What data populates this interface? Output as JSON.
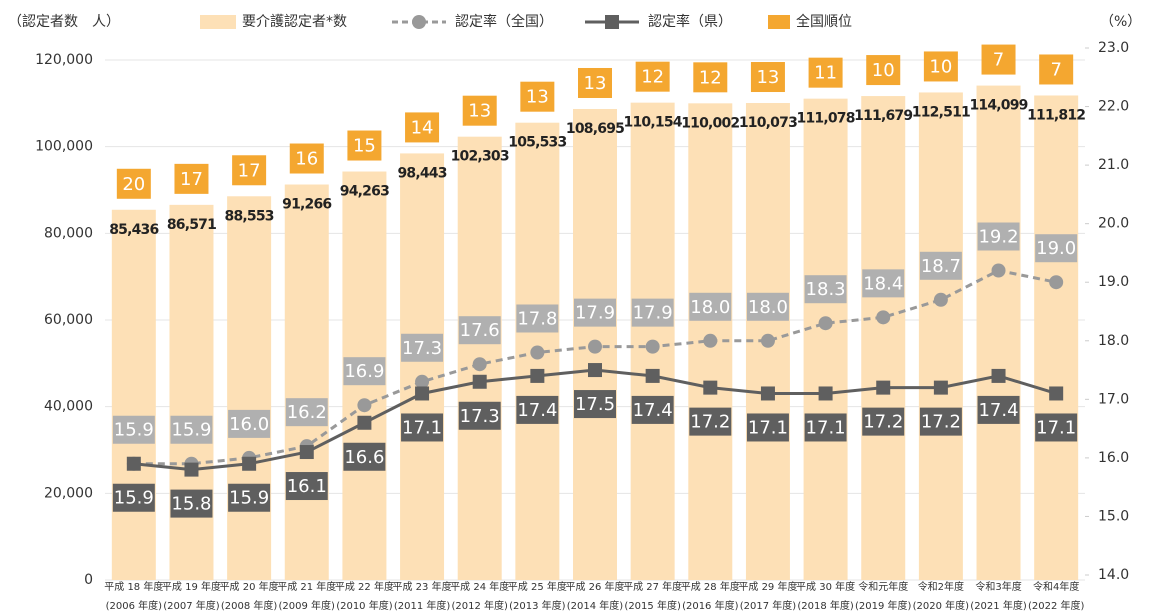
{
  "chart_data": {
    "type": "bar",
    "y_label": "（認定者数　人）",
    "y2_label": "（%）",
    "categories": [
      [
        "平成 18 年度",
        "(2006 年度)"
      ],
      [
        "平成 19 年度",
        "(2007 年度)"
      ],
      [
        "平成 20 年度",
        "(2008 年度)"
      ],
      [
        "平成 21 年度",
        "(2009 年度)"
      ],
      [
        "平成 22 年度",
        "(2010 年度)"
      ],
      [
        "平成 23 年度",
        "(2011 年度)"
      ],
      [
        "平成 24 年度",
        "(2012 年度)"
      ],
      [
        "平成 25 年度",
        "(2013 年度)"
      ],
      [
        "平成 26 年度",
        "(2014 年度)"
      ],
      [
        "平成 27 年度",
        "(2015 年度)"
      ],
      [
        "平成 28 年度",
        "(2016 年度)"
      ],
      [
        "平成 29 年度",
        "(2017 年度)"
      ],
      [
        "平成 30 年度",
        "(2018 年度)"
      ],
      [
        "令和元年度",
        "(2019 年度)"
      ],
      [
        "令和2年度",
        "(2020 年度)"
      ],
      [
        "令和3年度",
        "(2021 年度)"
      ],
      [
        "令和4年度",
        "(2022 年度)"
      ]
    ],
    "series": [
      {
        "name": "要介護認定者*数",
        "type": "bar",
        "color": "#fde0b6",
        "values": [
          85436,
          86571,
          88553,
          91266,
          94263,
          98443,
          102303,
          105533,
          108695,
          110154,
          110002,
          110073,
          111078,
          111679,
          112511,
          114099,
          111812
        ],
        "value_labels": [
          "85,436",
          "86,571",
          "88,553",
          "91,266",
          "94,263",
          "98,443",
          "102,303",
          "105,533",
          "108,695",
          "110,154",
          "110,002",
          "110,073",
          "111,078",
          "111,679",
          "112,511",
          "114,099",
          "111,812"
        ]
      },
      {
        "name": "認定率（全国）",
        "type": "line",
        "axis": "y2",
        "color": "#999999",
        "dash": true,
        "label_color": "#b0b0b0",
        "values": [
          15.9,
          15.9,
          16.0,
          16.2,
          16.9,
          17.3,
          17.6,
          17.8,
          17.9,
          17.9,
          18.0,
          18.0,
          18.3,
          18.4,
          18.7,
          19.2,
          19.0
        ],
        "value_labels": [
          "15.9",
          "15.9",
          "16.0",
          "16.2",
          "16.9",
          "17.3",
          "17.6",
          "17.8",
          "17.9",
          "17.9",
          "18.0",
          "18.0",
          "18.3",
          "18.4",
          "18.7",
          "19.2",
          "19.0"
        ]
      },
      {
        "name": "認定率（県）",
        "type": "line",
        "axis": "y2",
        "color": "#5f5f5f",
        "dash": false,
        "label_color": "#5f5f5f",
        "values": [
          15.9,
          15.8,
          15.9,
          16.1,
          16.6,
          17.1,
          17.3,
          17.4,
          17.5,
          17.4,
          17.2,
          17.1,
          17.1,
          17.2,
          17.2,
          17.4,
          17.1
        ]
      },
      {
        "name": "全国順位",
        "type": "label",
        "color": "#f4a730",
        "values": [
          20,
          17,
          17,
          16,
          15,
          14,
          13,
          13,
          13,
          12,
          12,
          13,
          11,
          10,
          10,
          7,
          7
        ]
      }
    ],
    "ylim": [
      0,
      120000
    ],
    "yticks": [
      0,
      {
        "value": 20000,
        "label": "20,000"
      },
      {
        "value": 40000,
        "label": "40,000"
      },
      {
        "value": 60000,
        "label": "60,000"
      },
      {
        "value": 80000,
        "label": "80,000"
      },
      {
        "value": 100000,
        "label": "100,000"
      },
      {
        "value": 120000,
        "label": "120,000"
      }
    ],
    "y2lim": [
      14,
      23
    ],
    "y2ticks": [
      {
        "value": 14,
        "label": "14.0"
      },
      {
        "value": 15,
        "label": "15.0"
      },
      {
        "value": 16,
        "label": "16.0"
      },
      {
        "value": 17,
        "label": "17.0"
      },
      {
        "value": 18,
        "label": "18.0"
      },
      {
        "value": 19,
        "label": "19.0"
      },
      {
        "value": 20,
        "label": "20.0"
      },
      {
        "value": 21,
        "label": "21.0"
      },
      {
        "value": 22,
        "label": "22.0"
      },
      {
        "value": 23,
        "label": "23.0"
      }
    ],
    "grid": true
  }
}
